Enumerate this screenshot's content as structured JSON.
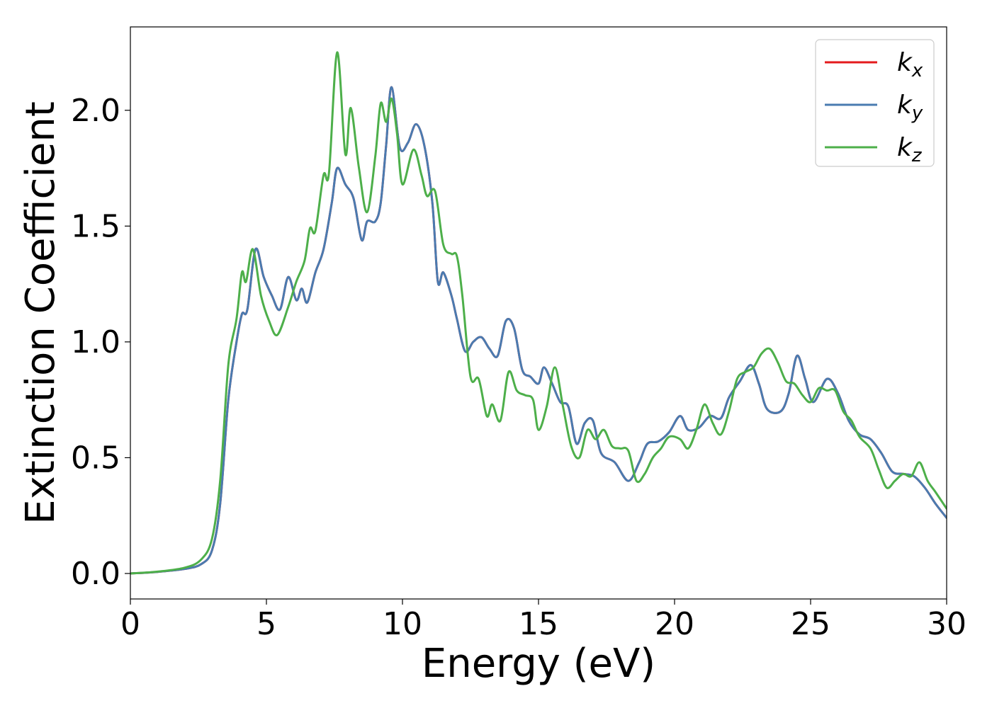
{
  "chart_data": {
    "type": "line",
    "title": "",
    "xlabel": "Energy (eV)",
    "ylabel": "Extinction Coefficient",
    "xlim": [
      0,
      30
    ],
    "ylim": [
      -0.11,
      2.36
    ],
    "xticks": [
      0,
      5,
      10,
      15,
      20,
      25,
      30
    ],
    "xtick_labels": [
      "0",
      "5",
      "10",
      "15",
      "20",
      "25",
      "30"
    ],
    "yticks": [
      0.0,
      0.5,
      1.0,
      1.5,
      2.0
    ],
    "ytick_labels": [
      "0.0",
      "0.5",
      "1.0",
      "1.5",
      "2.0"
    ],
    "grid": false,
    "legend_position": "top-right",
    "series": [
      {
        "name": "k",
        "subscript": "x",
        "color": "#e41a1c",
        "points": [
          [
            0,
            0.0
          ],
          [
            1,
            0.007
          ],
          [
            2,
            0.02
          ],
          [
            2.6,
            0.04
          ],
          [
            3.0,
            0.1
          ],
          [
            3.3,
            0.3
          ],
          [
            3.6,
            0.75
          ],
          [
            3.9,
            1.0
          ],
          [
            4.1,
            1.12
          ],
          [
            4.3,
            1.14
          ],
          [
            4.6,
            1.4
          ],
          [
            4.9,
            1.28
          ],
          [
            5.2,
            1.2
          ],
          [
            5.5,
            1.14
          ],
          [
            5.8,
            1.28
          ],
          [
            6.1,
            1.18
          ],
          [
            6.3,
            1.23
          ],
          [
            6.5,
            1.17
          ],
          [
            6.8,
            1.3
          ],
          [
            7.1,
            1.4
          ],
          [
            7.4,
            1.6
          ],
          [
            7.6,
            1.75
          ],
          [
            7.9,
            1.68
          ],
          [
            8.2,
            1.62
          ],
          [
            8.5,
            1.44
          ],
          [
            8.7,
            1.52
          ],
          [
            9.0,
            1.52
          ],
          [
            9.2,
            1.6
          ],
          [
            9.4,
            1.85
          ],
          [
            9.6,
            2.1
          ],
          [
            9.9,
            1.84
          ],
          [
            10.2,
            1.86
          ],
          [
            10.5,
            1.94
          ],
          [
            10.8,
            1.85
          ],
          [
            11.1,
            1.6
          ],
          [
            11.3,
            1.26
          ],
          [
            11.5,
            1.3
          ],
          [
            11.8,
            1.2
          ],
          [
            12.0,
            1.1
          ],
          [
            12.3,
            0.96
          ],
          [
            12.6,
            1.0
          ],
          [
            12.9,
            1.02
          ],
          [
            13.2,
            0.97
          ],
          [
            13.5,
            0.94
          ],
          [
            13.8,
            1.09
          ],
          [
            14.1,
            1.06
          ],
          [
            14.4,
            0.88
          ],
          [
            14.7,
            0.85
          ],
          [
            15.0,
            0.82
          ],
          [
            15.2,
            0.89
          ],
          [
            15.5,
            0.82
          ],
          [
            15.8,
            0.74
          ],
          [
            16.1,
            0.72
          ],
          [
            16.4,
            0.56
          ],
          [
            16.7,
            0.65
          ],
          [
            17.0,
            0.66
          ],
          [
            17.3,
            0.52
          ],
          [
            17.8,
            0.48
          ],
          [
            18.3,
            0.4
          ],
          [
            18.7,
            0.48
          ],
          [
            19.0,
            0.56
          ],
          [
            19.4,
            0.57
          ],
          [
            19.8,
            0.61
          ],
          [
            20.2,
            0.68
          ],
          [
            20.5,
            0.62
          ],
          [
            20.9,
            0.63
          ],
          [
            21.3,
            0.68
          ],
          [
            21.7,
            0.67
          ],
          [
            22.0,
            0.76
          ],
          [
            22.4,
            0.83
          ],
          [
            22.8,
            0.9
          ],
          [
            23.1,
            0.82
          ],
          [
            23.4,
            0.71
          ],
          [
            23.9,
            0.7
          ],
          [
            24.2,
            0.78
          ],
          [
            24.5,
            0.94
          ],
          [
            24.8,
            0.84
          ],
          [
            25.1,
            0.74
          ],
          [
            25.6,
            0.84
          ],
          [
            26.0,
            0.78
          ],
          [
            26.4,
            0.66
          ],
          [
            26.8,
            0.6
          ],
          [
            27.2,
            0.58
          ],
          [
            27.6,
            0.52
          ],
          [
            28.0,
            0.44
          ],
          [
            28.4,
            0.43
          ],
          [
            28.8,
            0.42
          ],
          [
            29.2,
            0.37
          ],
          [
            29.6,
            0.3
          ],
          [
            30,
            0.24
          ]
        ]
      },
      {
        "name": "k",
        "subscript": "y",
        "color": "#4a7bb0",
        "points": [
          [
            0,
            0.0
          ],
          [
            1,
            0.007
          ],
          [
            2,
            0.02
          ],
          [
            2.6,
            0.04
          ],
          [
            3.0,
            0.1
          ],
          [
            3.3,
            0.3
          ],
          [
            3.6,
            0.75
          ],
          [
            3.9,
            1.0
          ],
          [
            4.1,
            1.12
          ],
          [
            4.3,
            1.14
          ],
          [
            4.6,
            1.4
          ],
          [
            4.9,
            1.28
          ],
          [
            5.2,
            1.2
          ],
          [
            5.5,
            1.14
          ],
          [
            5.8,
            1.28
          ],
          [
            6.1,
            1.18
          ],
          [
            6.3,
            1.23
          ],
          [
            6.5,
            1.17
          ],
          [
            6.8,
            1.3
          ],
          [
            7.1,
            1.4
          ],
          [
            7.4,
            1.6
          ],
          [
            7.6,
            1.75
          ],
          [
            7.9,
            1.68
          ],
          [
            8.2,
            1.62
          ],
          [
            8.5,
            1.44
          ],
          [
            8.7,
            1.52
          ],
          [
            9.0,
            1.52
          ],
          [
            9.2,
            1.6
          ],
          [
            9.4,
            1.85
          ],
          [
            9.6,
            2.1
          ],
          [
            9.9,
            1.84
          ],
          [
            10.2,
            1.86
          ],
          [
            10.5,
            1.94
          ],
          [
            10.8,
            1.85
          ],
          [
            11.1,
            1.6
          ],
          [
            11.3,
            1.26
          ],
          [
            11.5,
            1.3
          ],
          [
            11.8,
            1.2
          ],
          [
            12.0,
            1.1
          ],
          [
            12.3,
            0.96
          ],
          [
            12.6,
            1.0
          ],
          [
            12.9,
            1.02
          ],
          [
            13.2,
            0.97
          ],
          [
            13.5,
            0.94
          ],
          [
            13.8,
            1.09
          ],
          [
            14.1,
            1.06
          ],
          [
            14.4,
            0.88
          ],
          [
            14.7,
            0.85
          ],
          [
            15.0,
            0.82
          ],
          [
            15.2,
            0.89
          ],
          [
            15.5,
            0.82
          ],
          [
            15.8,
            0.74
          ],
          [
            16.1,
            0.72
          ],
          [
            16.4,
            0.56
          ],
          [
            16.7,
            0.65
          ],
          [
            17.0,
            0.66
          ],
          [
            17.3,
            0.52
          ],
          [
            17.8,
            0.48
          ],
          [
            18.3,
            0.4
          ],
          [
            18.7,
            0.48
          ],
          [
            19.0,
            0.56
          ],
          [
            19.4,
            0.57
          ],
          [
            19.8,
            0.61
          ],
          [
            20.2,
            0.68
          ],
          [
            20.5,
            0.62
          ],
          [
            20.9,
            0.63
          ],
          [
            21.3,
            0.68
          ],
          [
            21.7,
            0.67
          ],
          [
            22.0,
            0.76
          ],
          [
            22.4,
            0.83
          ],
          [
            22.8,
            0.9
          ],
          [
            23.1,
            0.82
          ],
          [
            23.4,
            0.71
          ],
          [
            23.9,
            0.7
          ],
          [
            24.2,
            0.78
          ],
          [
            24.5,
            0.94
          ],
          [
            24.8,
            0.84
          ],
          [
            25.1,
            0.74
          ],
          [
            25.6,
            0.84
          ],
          [
            26.0,
            0.78
          ],
          [
            26.4,
            0.66
          ],
          [
            26.8,
            0.6
          ],
          [
            27.2,
            0.58
          ],
          [
            27.6,
            0.52
          ],
          [
            28.0,
            0.44
          ],
          [
            28.4,
            0.43
          ],
          [
            28.8,
            0.42
          ],
          [
            29.2,
            0.37
          ],
          [
            29.6,
            0.3
          ],
          [
            30,
            0.24
          ]
        ]
      },
      {
        "name": "k",
        "subscript": "z",
        "color": "#4daf4a",
        "points": [
          [
            0,
            0.0
          ],
          [
            1,
            0.008
          ],
          [
            2,
            0.025
          ],
          [
            2.6,
            0.06
          ],
          [
            3.0,
            0.15
          ],
          [
            3.3,
            0.4
          ],
          [
            3.6,
            0.9
          ],
          [
            3.9,
            1.1
          ],
          [
            4.1,
            1.3
          ],
          [
            4.25,
            1.26
          ],
          [
            4.5,
            1.4
          ],
          [
            4.8,
            1.2
          ],
          [
            5.1,
            1.09
          ],
          [
            5.4,
            1.03
          ],
          [
            5.8,
            1.15
          ],
          [
            6.1,
            1.26
          ],
          [
            6.4,
            1.35
          ],
          [
            6.6,
            1.49
          ],
          [
            6.8,
            1.48
          ],
          [
            7.1,
            1.72
          ],
          [
            7.3,
            1.73
          ],
          [
            7.6,
            2.25
          ],
          [
            7.9,
            1.81
          ],
          [
            8.1,
            2.01
          ],
          [
            8.4,
            1.75
          ],
          [
            8.7,
            1.56
          ],
          [
            9.0,
            1.8
          ],
          [
            9.2,
            2.03
          ],
          [
            9.4,
            1.95
          ],
          [
            9.6,
            2.05
          ],
          [
            9.8,
            1.9
          ],
          [
            10.0,
            1.68
          ],
          [
            10.4,
            1.83
          ],
          [
            10.7,
            1.72
          ],
          [
            10.9,
            1.63
          ],
          [
            11.2,
            1.65
          ],
          [
            11.5,
            1.42
          ],
          [
            11.8,
            1.38
          ],
          [
            12.0,
            1.37
          ],
          [
            12.2,
            1.2
          ],
          [
            12.5,
            0.85
          ],
          [
            12.8,
            0.84
          ],
          [
            13.1,
            0.68
          ],
          [
            13.3,
            0.73
          ],
          [
            13.6,
            0.66
          ],
          [
            13.9,
            0.87
          ],
          [
            14.2,
            0.79
          ],
          [
            14.5,
            0.77
          ],
          [
            14.8,
            0.75
          ],
          [
            15.0,
            0.62
          ],
          [
            15.3,
            0.72
          ],
          [
            15.6,
            0.89
          ],
          [
            15.9,
            0.72
          ],
          [
            16.2,
            0.55
          ],
          [
            16.5,
            0.5
          ],
          [
            16.8,
            0.62
          ],
          [
            17.1,
            0.58
          ],
          [
            17.4,
            0.62
          ],
          [
            17.7,
            0.55
          ],
          [
            18.0,
            0.54
          ],
          [
            18.3,
            0.53
          ],
          [
            18.6,
            0.4
          ],
          [
            18.9,
            0.43
          ],
          [
            19.2,
            0.5
          ],
          [
            19.5,
            0.54
          ],
          [
            19.8,
            0.59
          ],
          [
            20.2,
            0.58
          ],
          [
            20.5,
            0.54
          ],
          [
            20.8,
            0.62
          ],
          [
            21.1,
            0.73
          ],
          [
            21.4,
            0.65
          ],
          [
            21.7,
            0.6
          ],
          [
            22.0,
            0.7
          ],
          [
            22.3,
            0.84
          ],
          [
            22.6,
            0.87
          ],
          [
            22.9,
            0.89
          ],
          [
            23.2,
            0.95
          ],
          [
            23.5,
            0.97
          ],
          [
            23.8,
            0.91
          ],
          [
            24.1,
            0.83
          ],
          [
            24.4,
            0.82
          ],
          [
            24.7,
            0.77
          ],
          [
            25.0,
            0.74
          ],
          [
            25.3,
            0.8
          ],
          [
            25.6,
            0.79
          ],
          [
            25.9,
            0.79
          ],
          [
            26.2,
            0.7
          ],
          [
            26.5,
            0.66
          ],
          [
            26.8,
            0.59
          ],
          [
            27.2,
            0.54
          ],
          [
            27.5,
            0.45
          ],
          [
            27.8,
            0.37
          ],
          [
            28.1,
            0.4
          ],
          [
            28.4,
            0.43
          ],
          [
            28.7,
            0.42
          ],
          [
            29.0,
            0.48
          ],
          [
            29.3,
            0.4
          ],
          [
            29.6,
            0.35
          ],
          [
            30,
            0.28
          ]
        ]
      }
    ]
  }
}
